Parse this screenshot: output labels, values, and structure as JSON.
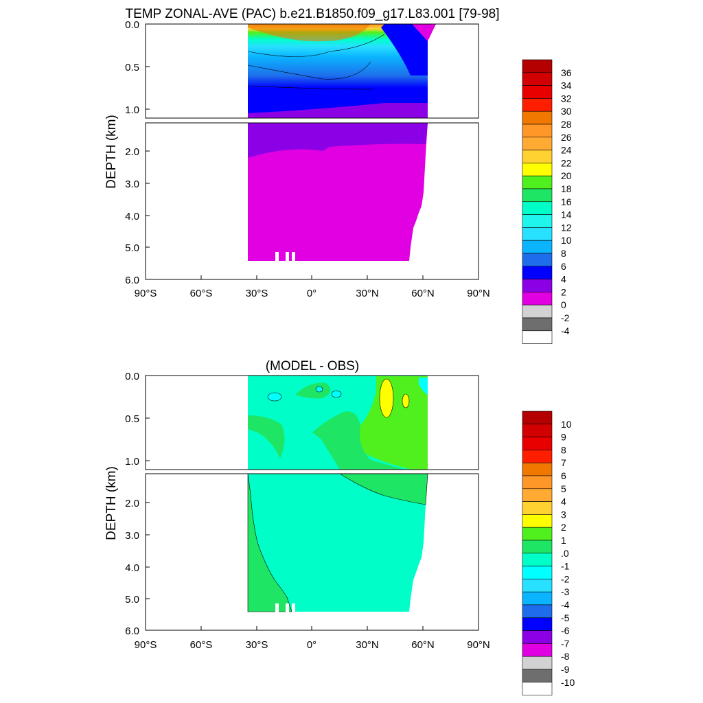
{
  "chart_data": [
    {
      "type": "heatmap",
      "title": "TEMP ZONAL-AVE (PAC) b.e21.B1850.f09_g17.L83.001 [79-98]",
      "ylabel": "DEPTH (km)",
      "x_ticks": [
        "90°S",
        "60°S",
        "30°S",
        "0°",
        "30°N",
        "60°N",
        "90°N"
      ],
      "x_tick_values": [
        -90,
        -60,
        -30,
        0,
        30,
        60,
        90
      ],
      "xlim": [
        -90,
        90
      ],
      "upper_y_ticks": [
        "0.0",
        "0.5",
        "1.0"
      ],
      "upper_y_tick_values": [
        0,
        0.5,
        1.0
      ],
      "upper_ylim": [
        0,
        1.1
      ],
      "lower_y_ticks": [
        "2.0",
        "3.0",
        "4.0",
        "5.0",
        "6.0"
      ],
      "lower_y_tick_values": [
        2,
        3,
        4,
        5,
        6
      ],
      "lower_ylim": [
        1.1,
        6.0
      ],
      "ocean_lat_range": [
        -33,
        62
      ],
      "colorbar": {
        "labels": [
          "36",
          "34",
          "32",
          "30",
          "28",
          "26",
          "24",
          "22",
          "20",
          "18",
          "16",
          "14",
          "12",
          "10",
          "8",
          "6",
          "4",
          "2",
          "0",
          "-2",
          "-4"
        ],
        "colors": [
          "#b40000",
          "#d20000",
          "#e80000",
          "#ff1e00",
          "#f07800",
          "#ff9628",
          "#ffaa32",
          "#ffd232",
          "#ffff00",
          "#50f01e",
          "#1ee664",
          "#00ffc8",
          "#20f5ec",
          "#28e0ff",
          "#0ab4ff",
          "#1e6eeb",
          "#0000ff",
          "#8c00e6",
          "#e100e1",
          "#d2d2d2",
          "#6e6e6e",
          "#ffffff"
        ]
      },
      "depth_layers": [
        {
          "depth": 0.0,
          "value": 26
        },
        {
          "depth": 0.1,
          "value": 18
        },
        {
          "depth": 0.2,
          "value": 12
        },
        {
          "depth": 0.35,
          "value": 9
        },
        {
          "depth": 0.55,
          "value": 7
        },
        {
          "depth": 0.8,
          "value": 5
        },
        {
          "depth": 1.05,
          "value": 4
        },
        {
          "depth": 1.9,
          "value": 3
        },
        {
          "depth": 5.4,
          "value": 1.5
        }
      ]
    },
    {
      "type": "heatmap",
      "title": "(MODEL - OBS)",
      "ylabel": "DEPTH (km)",
      "x_ticks": [
        "90°S",
        "60°S",
        "30°S",
        "0°",
        "30°N",
        "60°N",
        "90°N"
      ],
      "x_tick_values": [
        -90,
        -60,
        -30,
        0,
        30,
        60,
        90
      ],
      "xlim": [
        -90,
        90
      ],
      "upper_y_ticks": [
        "0.0",
        "0.5",
        "1.0"
      ],
      "upper_y_tick_values": [
        0,
        0.5,
        1.0
      ],
      "upper_ylim": [
        0,
        1.1
      ],
      "lower_y_ticks": [
        "2.0",
        "3.0",
        "4.0",
        "5.0",
        "6.0"
      ],
      "lower_y_tick_values": [
        2,
        3,
        4,
        5,
        6
      ],
      "lower_ylim": [
        1.1,
        6.0
      ],
      "ocean_lat_range": [
        -33,
        62
      ],
      "colorbar": {
        "labels": [
          "10",
          "9",
          "8",
          "7",
          "6",
          "5",
          "4",
          "3",
          "2",
          "1",
          ".0",
          "-1",
          "-2",
          "-3",
          "-4",
          "-5",
          "-6",
          "-7",
          "-8",
          "-9",
          "-10"
        ],
        "colors": [
          "#b40000",
          "#d20000",
          "#e80000",
          "#ff1e00",
          "#f07800",
          "#ff9628",
          "#ffaa32",
          "#ffd232",
          "#ffff00",
          "#50f01e",
          "#1ee664",
          "#00ffc8",
          "#00ffff",
          "#28e0ff",
          "#0ab4ff",
          "#1e6eeb",
          "#0000ff",
          "#8c00e6",
          "#e100e1",
          "#d2d2d2",
          "#6e6e6e",
          "#ffffff"
        ]
      },
      "dominant_value_range": [
        -1,
        0
      ],
      "regions": [
        {
          "desc": "warm bias near 45N surface",
          "value": 2.5
        },
        {
          "desc": "northern mid-depth",
          "value": 1.5
        },
        {
          "desc": "southern deep",
          "value": 0.5
        },
        {
          "desc": "background",
          "value": -0.5
        },
        {
          "desc": "subsurface cool patches",
          "value": -1.5
        }
      ]
    }
  ]
}
